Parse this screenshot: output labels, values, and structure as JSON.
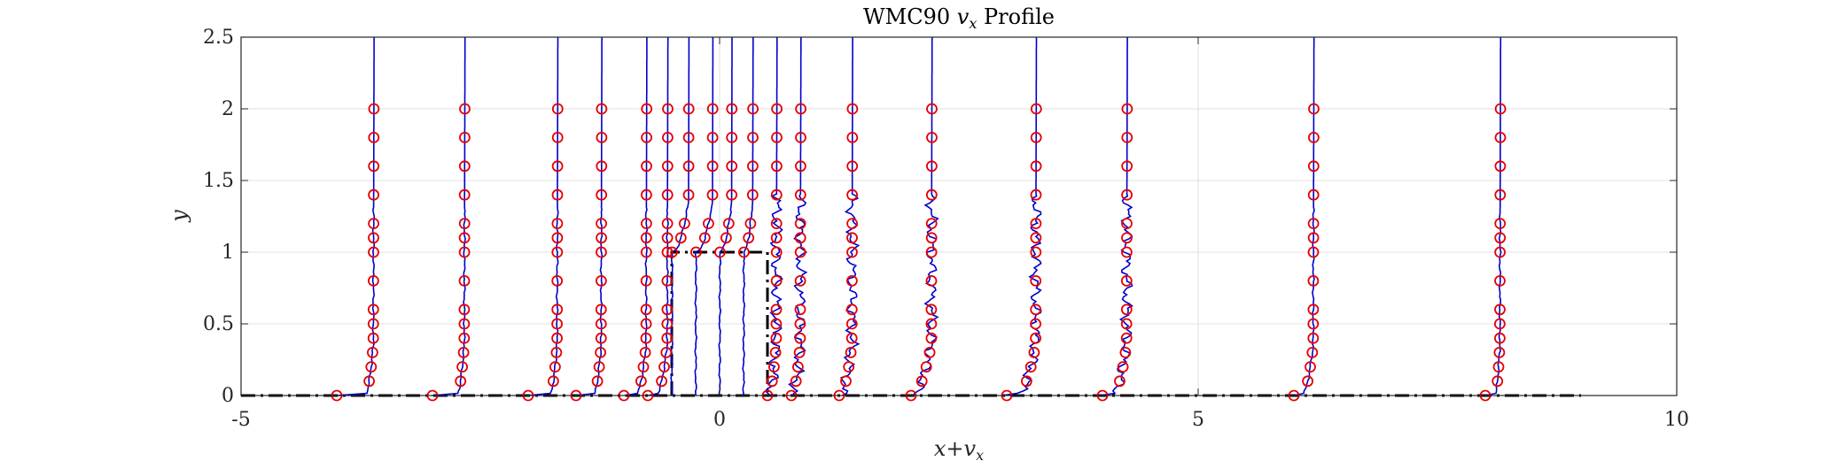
{
  "chart_data": {
    "type": "line",
    "title": "WMC90 v_x Profile",
    "title_parts": {
      "pre": "WMC90 ",
      "var": "v",
      "sub": "x",
      "post": " Profile"
    },
    "xlabel": "x+v_x",
    "xlabel_parts": {
      "a": "x",
      "plus": "+",
      "v": "v",
      "sub": "x"
    },
    "ylabel": "y",
    "xlim": [
      -5,
      10
    ],
    "ylim": [
      0,
      2.5
    ],
    "xticks": [
      -5,
      0,
      5,
      10
    ],
    "xtick_labels": [
      "-5",
      "0",
      "5",
      "10"
    ],
    "yticks": [
      0,
      0.5,
      1,
      1.5,
      2,
      2.5
    ],
    "ytick_labels": [
      "0",
      "0.5",
      "1",
      "1.5",
      "2",
      "2.5"
    ],
    "grid": true,
    "colors": {
      "simulation": "#0000cc",
      "experiment": "#e60000",
      "geometry": "#000000",
      "grid": "#e0e0e0",
      "axis": "#262626"
    },
    "profiles": [
      {
        "x0": -4,
        "uin": 0.29,
        "ufs": 0.38
      },
      {
        "x0": -3,
        "uin": 0.25,
        "ufs": 0.33
      },
      {
        "x0": -2,
        "uin": 0.22,
        "ufs": 0.3
      },
      {
        "x0": -1.5,
        "uin": 0.18,
        "ufs": 0.26
      },
      {
        "x0": -1,
        "uin": 0.12,
        "ufs": 0.23
      },
      {
        "x0": -0.75,
        "uin": 0.08,
        "ufs": 0.2
      },
      {
        "x0": -0.5,
        "uin": 0.0,
        "ufs": 0.17,
        "wall": 1.0
      },
      {
        "x0": -0.25,
        "uin": 0.0,
        "ufs": 0.17,
        "wall": 1.0
      },
      {
        "x0": 0,
        "uin": 0.0,
        "ufs": 0.12,
        "wall": 1.0
      },
      {
        "x0": 0.25,
        "uin": 0.0,
        "ufs": 0.09,
        "wall": 1.0
      },
      {
        "x0": 0.5,
        "uin": 0.0,
        "ufs": 0.09,
        "wall": 0.0
      },
      {
        "x0": 0.75,
        "uin": 0.0,
        "ufs": 0.09,
        "wall": 0.0
      },
      {
        "x0": 1.25,
        "uin": 0.0,
        "ufs": 0.13,
        "wall": 0.0
      },
      {
        "x0": 2.0,
        "uin": 0.0,
        "ufs": 0.21,
        "wall": 0.0
      },
      {
        "x0": 3.0,
        "uin": 0.1,
        "ufs": 0.3,
        "wall": 0.0
      },
      {
        "x0": 4.0,
        "uin": 0.1,
        "ufs": 0.25,
        "wall": 0.0
      },
      {
        "x0": 6.0,
        "uin": 0.08,
        "ufs": 0.2,
        "wall": 0.0
      },
      {
        "x0": 8.0,
        "uin": 0.1,
        "ufs": 0.15,
        "wall": 0.0
      }
    ],
    "y_measure": [
      0,
      0.1,
      0.2,
      0.3,
      0.4,
      0.5,
      0.6,
      0.8,
      1.0,
      1.1,
      1.2,
      1.4,
      1.6,
      1.8,
      2.0
    ],
    "obstacle": {
      "x": [
        -0.5,
        0.5
      ],
      "y": [
        0,
        1
      ]
    },
    "ground": {
      "x": [
        -5,
        9
      ]
    }
  }
}
